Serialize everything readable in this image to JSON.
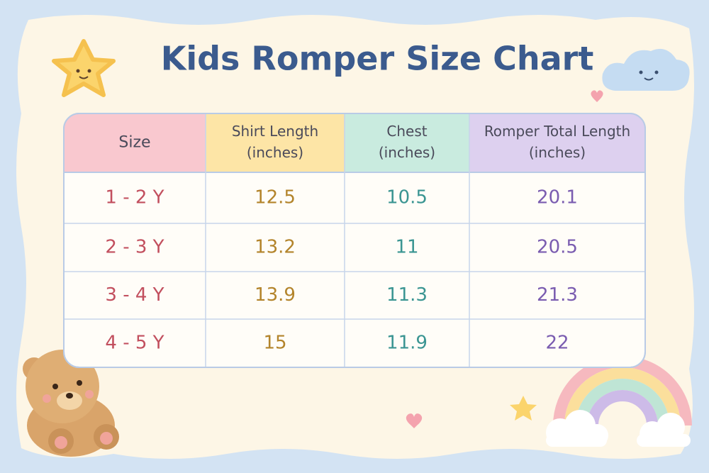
{
  "title": "Kids Romper Size Chart",
  "table": {
    "headers": [
      [
        "Size"
      ],
      [
        "Shirt Length",
        "(inches)"
      ],
      [
        "Chest",
        "(inches)"
      ],
      [
        "Romper Total Length",
        "(inches)"
      ]
    ],
    "rows": [
      [
        "1 - 2 Y",
        "12.5",
        "10.5",
        "20.1"
      ],
      [
        "2 - 3 Y",
        "13.2",
        "11",
        "20.5"
      ],
      [
        "3 - 4 Y",
        "13.9",
        "11.3",
        "21.3"
      ],
      [
        "4 - 5 Y",
        "15",
        "11.9",
        "22"
      ]
    ]
  }
}
